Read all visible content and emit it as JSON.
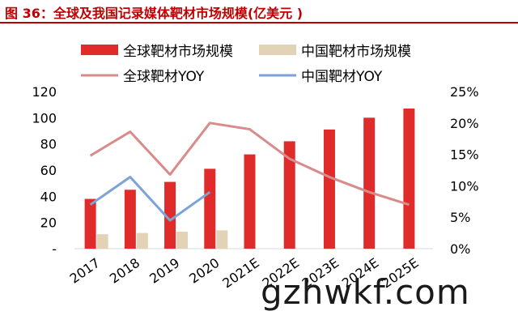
{
  "title": "图 36：全球及我国记录媒体靶材市场规模(亿美元 )",
  "watermark": "gzhwkf.com",
  "colors": {
    "title": "#c00000",
    "global_bar": "#e02b2b",
    "china_bar": "#e2d3b6",
    "global_yoy": "#d98a8a",
    "china_yoy": "#7da3d6"
  },
  "chart_data": {
    "type": "bar",
    "categories": [
      "2017",
      "2018",
      "2019",
      "2020",
      "2021E",
      "2022E",
      "2023E",
      "2024E",
      "2025E"
    ],
    "series": [
      {
        "name": "全球靶材市场规模",
        "type": "bar",
        "axis": "left",
        "values": [
          38,
          45,
          51,
          61,
          72,
          82,
          91,
          100,
          107
        ]
      },
      {
        "name": "中国靶材市场规模",
        "type": "bar",
        "axis": "left",
        "values": [
          11,
          12,
          13,
          14,
          null,
          null,
          null,
          null,
          null
        ]
      },
      {
        "name": "全球靶材YOY",
        "type": "line",
        "axis": "right",
        "values": [
          14.8,
          18.6,
          11.8,
          20.0,
          19.0,
          14.3,
          11.4,
          9.0,
          7.0
        ]
      },
      {
        "name": "中国靶材YOY",
        "type": "line",
        "axis": "right",
        "values": [
          7.0,
          11.4,
          4.5,
          9.0,
          null,
          null,
          null,
          null,
          null
        ]
      }
    ],
    "ylim": [
      0,
      120
    ],
    "y_ticks": [
      "-",
      "20",
      "40",
      "60",
      "80",
      "100",
      "120"
    ],
    "y2lim": [
      0,
      25
    ],
    "y2_ticks": [
      "0%",
      "5%",
      "10%",
      "15%",
      "20%",
      "25%"
    ],
    "legend_position": "top",
    "grid": false
  }
}
